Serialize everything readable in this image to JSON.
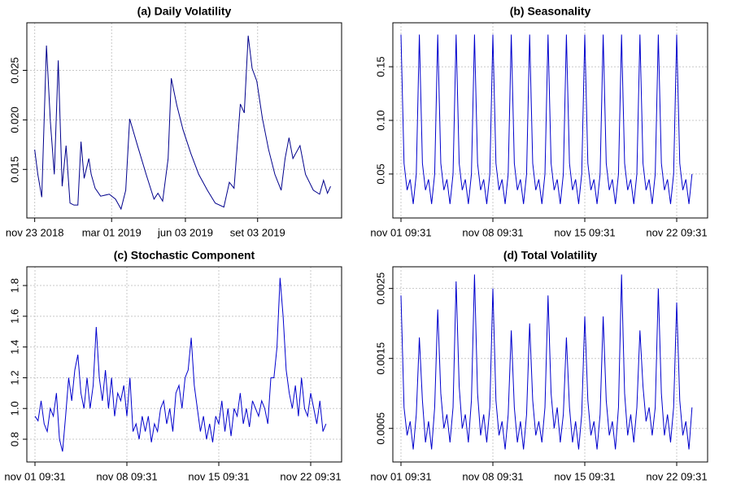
{
  "chart_data": [
    {
      "type": "line",
      "title": "(a) Daily Volatility",
      "grid": true,
      "x": [
        "2018-11-23",
        "2018-11-27",
        "2018-12-02",
        "2018-12-08",
        "2018-12-13",
        "2018-12-18",
        "2018-12-23",
        "2018-12-28",
        "2019-01-02",
        "2019-01-07",
        "2019-01-12",
        "2019-01-17",
        "2019-01-21",
        "2019-01-25",
        "2019-01-31",
        "2019-02-03",
        "2019-02-08",
        "2019-02-15",
        "2019-02-26",
        "2019-03-06",
        "2019-03-13",
        "2019-03-19",
        "2019-03-24",
        "2019-04-03",
        "2019-04-14",
        "2019-04-24",
        "2019-04-29",
        "2019-05-05",
        "2019-05-12",
        "2019-05-16",
        "2019-05-23",
        "2019-05-31",
        "2019-06-10",
        "2019-06-20",
        "2019-07-01",
        "2019-07-11",
        "2019-07-22",
        "2019-07-29",
        "2019-08-04",
        "2019-08-12",
        "2019-08-17",
        "2019-08-22",
        "2019-08-27",
        "2019-09-02",
        "2019-09-09",
        "2019-09-17",
        "2019-09-25",
        "2019-10-03",
        "2019-10-08",
        "2019-10-13",
        "2019-10-18",
        "2019-10-27",
        "2019-11-03",
        "2019-11-13",
        "2019-11-21",
        "2019-11-26",
        "2019-12-01",
        "2019-12-05"
      ],
      "series": [
        {
          "color": "#00008b",
          "values": [
            0.017,
            0.0145,
            0.0122,
            0.0275,
            0.0198,
            0.0145,
            0.026,
            0.0133,
            0.0174,
            0.0116,
            0.0114,
            0.0114,
            0.0178,
            0.0141,
            0.0161,
            0.0145,
            0.0131,
            0.0123,
            0.0125,
            0.012,
            0.011,
            0.0129,
            0.0201,
            0.0174,
            0.0145,
            0.012,
            0.0126,
            0.0118,
            0.0161,
            0.0242,
            0.0215,
            0.019,
            0.0166,
            0.0145,
            0.0129,
            0.0116,
            0.0112,
            0.0137,
            0.0131,
            0.0216,
            0.0207,
            0.0285,
            0.0252,
            0.0239,
            0.0202,
            0.017,
            0.0145,
            0.0129,
            0.0161,
            0.0182,
            0.0161,
            0.0174,
            0.0145,
            0.0129,
            0.0125,
            0.0139,
            0.0126,
            0.0133
          ]
        }
      ],
      "xlim": [
        "2018-11-13",
        "2019-12-19"
      ],
      "xticks": [
        {
          "value": "2018-11-23",
          "label": "nov 23 2018"
        },
        {
          "value": "2019-03-01",
          "label": "mar 01 2019"
        },
        {
          "value": "2019-06-03",
          "label": "jun 03 2019"
        },
        {
          "value": "2019-09-03",
          "label": "set 03 2019"
        }
      ],
      "ylim": [
        0.0101,
        0.0298
      ],
      "yticks": [
        0.015,
        {
          "value": 0.02,
          "label": "0.020"
        },
        0.025
      ]
    },
    {
      "type": "line",
      "title": "(b) Seasonality",
      "grid": true,
      "categories": [
        "nov 01 09:31",
        null,
        null,
        null,
        null,
        null,
        null,
        null,
        null,
        null,
        null,
        null,
        null,
        null,
        null,
        null,
        null,
        null,
        null,
        null,
        null,
        null,
        null,
        null,
        null,
        null,
        null,
        null,
        null,
        null,
        "nov 08 09:31",
        null,
        null,
        null,
        null,
        null,
        null,
        null,
        null,
        null,
        null,
        null,
        null,
        null,
        null,
        null,
        null,
        null,
        null,
        null,
        null,
        null,
        null,
        null,
        null,
        null,
        null,
        null,
        null,
        null,
        "nov 15 09:31",
        null,
        null,
        null,
        null,
        null,
        null,
        null,
        null,
        null,
        null,
        null,
        null,
        null,
        null,
        null,
        null,
        null,
        null,
        null,
        null,
        null,
        null,
        null,
        null,
        null,
        null,
        null,
        null,
        null,
        "nov 22 09:31",
        null,
        null,
        null,
        null,
        null
      ],
      "series": [
        {
          "color": "#0000cd",
          "values": [
            0.18,
            0.06,
            0.035,
            0.045,
            0.022,
            0.05,
            0.18,
            0.06,
            0.035,
            0.045,
            0.022,
            0.05,
            0.18,
            0.06,
            0.035,
            0.045,
            0.022,
            0.05,
            0.18,
            0.06,
            0.035,
            0.045,
            0.022,
            0.05,
            0.18,
            0.06,
            0.035,
            0.045,
            0.022,
            0.05,
            0.18,
            0.06,
            0.035,
            0.045,
            0.022,
            0.05,
            0.18,
            0.06,
            0.035,
            0.045,
            0.022,
            0.05,
            0.18,
            0.06,
            0.035,
            0.045,
            0.022,
            0.05,
            0.18,
            0.06,
            0.035,
            0.045,
            0.022,
            0.05,
            0.18,
            0.06,
            0.035,
            0.045,
            0.022,
            0.05,
            0.18,
            0.06,
            0.035,
            0.045,
            0.022,
            0.05,
            0.18,
            0.06,
            0.035,
            0.045,
            0.022,
            0.05,
            0.18,
            0.06,
            0.035,
            0.045,
            0.022,
            0.05,
            0.18,
            0.06,
            0.035,
            0.045,
            0.022,
            0.05,
            0.18,
            0.06,
            0.035,
            0.045,
            0.022,
            0.05,
            0.18,
            0.06,
            0.035,
            0.045,
            0.022,
            0.05
          ]
        }
      ],
      "ylim": [
        0.009,
        0.191
      ],
      "yticks": [
        0.05,
        {
          "value": 0.1,
          "label": "0.10"
        },
        0.15
      ]
    },
    {
      "type": "line",
      "title": "(c) Stochastic Component",
      "grid": true,
      "categories": [
        "nov 01 09:31",
        null,
        null,
        null,
        null,
        null,
        null,
        null,
        null,
        null,
        null,
        null,
        null,
        null,
        null,
        null,
        null,
        null,
        null,
        null,
        null,
        null,
        null,
        null,
        null,
        null,
        null,
        null,
        null,
        null,
        "nov 08 09:31",
        null,
        null,
        null,
        null,
        null,
        null,
        null,
        null,
        null,
        null,
        null,
        null,
        null,
        null,
        null,
        null,
        null,
        null,
        null,
        null,
        null,
        null,
        null,
        null,
        null,
        null,
        null,
        null,
        null,
        "nov 15 09:31",
        null,
        null,
        null,
        null,
        null,
        null,
        null,
        null,
        null,
        null,
        null,
        null,
        null,
        null,
        null,
        null,
        null,
        null,
        null,
        null,
        null,
        null,
        null,
        null,
        null,
        null,
        null,
        null,
        null,
        "nov 22 09:31",
        null,
        null,
        null,
        null,
        null
      ],
      "series": [
        {
          "color": "#0000cd",
          "values": [
            0.95,
            0.92,
            1.05,
            0.9,
            0.85,
            1.0,
            0.95,
            1.1,
            0.8,
            0.72,
            0.95,
            1.2,
            1.05,
            1.25,
            1.35,
            1.1,
            1.0,
            1.2,
            1.0,
            1.15,
            1.53,
            1.2,
            1.05,
            1.25,
            1.0,
            1.2,
            0.95,
            1.1,
            1.05,
            1.15,
            0.95,
            1.2,
            0.85,
            0.9,
            0.8,
            0.95,
            0.85,
            0.95,
            0.78,
            0.9,
            0.85,
            1.0,
            1.05,
            0.9,
            1.0,
            0.85,
            1.1,
            1.15,
            1.0,
            1.2,
            1.25,
            1.46,
            1.15,
            1.0,
            0.85,
            0.95,
            0.8,
            0.9,
            0.78,
            0.95,
            0.9,
            1.05,
            0.85,
            1.0,
            0.82,
            1.0,
            0.95,
            1.1,
            0.9,
            1.0,
            0.88,
            1.05,
            1.0,
            0.95,
            1.05,
            1.0,
            0.9,
            1.2,
            1.2,
            1.4,
            1.85,
            1.6,
            1.25,
            1.1,
            1.0,
            1.15,
            0.95,
            1.2,
            1.0,
            0.95,
            1.1,
            1.0,
            0.9,
            1.05,
            0.85,
            0.9
          ]
        }
      ],
      "ylim": [
        0.652,
        1.922
      ],
      "yticks": [
        0.8,
        {
          "value": 1,
          "label": "1.0"
        },
        1.2,
        1.4,
        1.6,
        1.8
      ]
    },
    {
      "type": "line",
      "title": "(d) Total Volatility",
      "grid": true,
      "categories": [
        "nov 01 09:31",
        null,
        null,
        null,
        null,
        null,
        null,
        null,
        null,
        null,
        null,
        null,
        null,
        null,
        null,
        null,
        null,
        null,
        null,
        null,
        null,
        null,
        null,
        null,
        null,
        null,
        null,
        null,
        null,
        null,
        "nov 08 09:31",
        null,
        null,
        null,
        null,
        null,
        null,
        null,
        null,
        null,
        null,
        null,
        null,
        null,
        null,
        null,
        null,
        null,
        null,
        null,
        null,
        null,
        null,
        null,
        null,
        null,
        null,
        null,
        null,
        null,
        "nov 15 09:31",
        null,
        null,
        null,
        null,
        null,
        null,
        null,
        null,
        null,
        null,
        null,
        null,
        null,
        null,
        null,
        null,
        null,
        null,
        null,
        null,
        null,
        null,
        null,
        null,
        null,
        null,
        null,
        null,
        null,
        "nov 22 09:31",
        null,
        null,
        null,
        null,
        null
      ],
      "series": [
        {
          "color": "#0000cd",
          "values": [
            0.0024,
            0.0008,
            0.0004,
            0.0006,
            0.0002,
            0.0007,
            0.0018,
            0.0009,
            0.0003,
            0.0006,
            0.0002,
            0.0008,
            0.0022,
            0.001,
            0.0005,
            0.0007,
            0.0003,
            0.0008,
            0.0026,
            0.0011,
            0.0005,
            0.0007,
            0.0003,
            0.0009,
            0.0027,
            0.001,
            0.0004,
            0.0007,
            0.0003,
            0.0008,
            0.0025,
            0.0009,
            0.0004,
            0.0006,
            0.0002,
            0.0007,
            0.0019,
            0.0008,
            0.0003,
            0.0006,
            0.0002,
            0.0007,
            0.002,
            0.0009,
            0.0004,
            0.0006,
            0.0003,
            0.0008,
            0.0024,
            0.001,
            0.0005,
            0.0008,
            0.0003,
            0.0007,
            0.0018,
            0.0008,
            0.0003,
            0.0006,
            0.0002,
            0.0007,
            0.0021,
            0.0009,
            0.0004,
            0.0006,
            0.0002,
            0.0007,
            0.0021,
            0.0009,
            0.0004,
            0.0006,
            0.0002,
            0.0008,
            0.0027,
            0.001,
            0.0004,
            0.0007,
            0.0003,
            0.0008,
            0.0019,
            0.0011,
            0.0006,
            0.0008,
            0.0004,
            0.0008,
            0.0025,
            0.001,
            0.0004,
            0.0007,
            0.0003,
            0.0008,
            0.0023,
            0.0009,
            0.0004,
            0.0006,
            0.0002,
            0.0008
          ]
        }
      ],
      "ylim": [
        2e-05,
        0.00281
      ],
      "yticks": [
        0.0005,
        0.0015,
        0.0025
      ]
    }
  ]
}
